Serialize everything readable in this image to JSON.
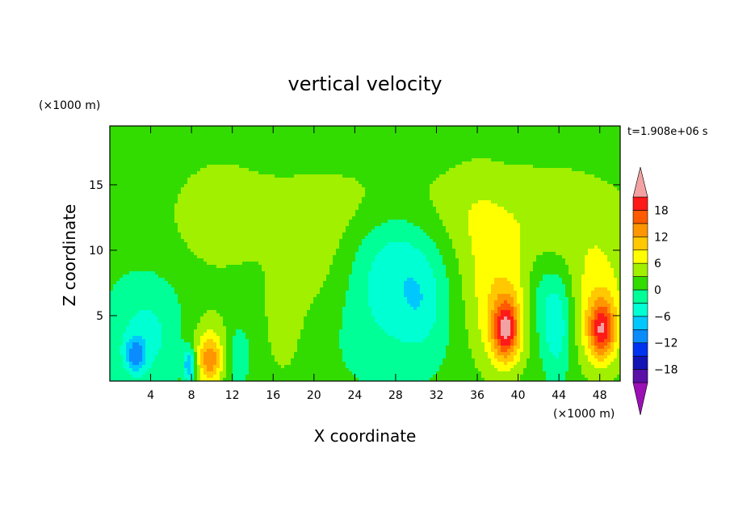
{
  "chart_data": {
    "type": "heatmap",
    "title": "vertical velocity",
    "xlabel": "X coordinate",
    "ylabel": "Z coordinate",
    "x_units": "(×1000 m)",
    "y_units": "(×1000 m)",
    "time_label": "t=1.908e+06 s",
    "xlim": [
      0,
      50
    ],
    "ylim": [
      0,
      19.5
    ],
    "x_ticks": [
      4,
      8,
      12,
      16,
      20,
      24,
      28,
      32,
      36,
      40,
      44,
      48
    ],
    "y_ticks": [
      5,
      10,
      15
    ],
    "colorbar": {
      "levels": [
        -21,
        -18,
        -15,
        -12,
        -9,
        -6,
        -3,
        0,
        3,
        6,
        9,
        12,
        15,
        18,
        21
      ],
      "tick_labels": [
        "18",
        "12",
        "6",
        "0",
        "−6",
        "−12",
        "−18"
      ],
      "tick_values": [
        18,
        12,
        6,
        0,
        -6,
        -12,
        -18
      ],
      "colors": [
        "#9b10b5",
        "#5a0fa6",
        "#1414b4",
        "#0032f0",
        "#0a8cff",
        "#00c8ff",
        "#00ffd2",
        "#00ff96",
        "#32dc00",
        "#a0f000",
        "#ffff00",
        "#ffc800",
        "#ff9600",
        "#ff5a00",
        "#ff1a1a",
        "#f2a2a2"
      ],
      "extend": "both"
    },
    "field_features": [
      {
        "x": 9.8,
        "z": 1.5,
        "amp": 10,
        "sx": 0.8,
        "sz": 1.3
      },
      {
        "x": 9.8,
        "z": 2.6,
        "amp": 4,
        "sx": 1.6,
        "sz": 2.2
      },
      {
        "x": 17.0,
        "z": 4.3,
        "amp": 3.5,
        "sx": 1.3,
        "sz": 3.0
      },
      {
        "x": 38.8,
        "z": 3.9,
        "amp": 15,
        "sx": 0.9,
        "sz": 1.6
      },
      {
        "x": 38.5,
        "z": 5.2,
        "amp": 7,
        "sx": 2.0,
        "sz": 3.4
      },
      {
        "x": 48.2,
        "z": 3.9,
        "amp": 14,
        "sx": 0.9,
        "sz": 1.5
      },
      {
        "x": 48.0,
        "z": 5.2,
        "amp": 7,
        "sx": 1.9,
        "sz": 3.4
      },
      {
        "x": 25.0,
        "z": 13.0,
        "amp": 3.5,
        "sx": 12.0,
        "sz": 2.8
      },
      {
        "x": 10.5,
        "z": 12.5,
        "amp": 2.5,
        "sx": 3.0,
        "sz": 3.5
      },
      {
        "x": 44.0,
        "z": 12.0,
        "amp": 3.2,
        "sx": 6.0,
        "sz": 3.5
      },
      {
        "x": 20.5,
        "z": 8.0,
        "amp": 3.0,
        "sx": 3.0,
        "sz": 3.0
      },
      {
        "x": 36.0,
        "z": 9.0,
        "amp": 2.5,
        "sx": 2.0,
        "sz": 5.0
      },
      {
        "x": 27.5,
        "z": 6.5,
        "amp": -5,
        "sx": 4.0,
        "sz": 4.0
      },
      {
        "x": 28.0,
        "z": 10.5,
        "amp": -3.5,
        "sx": 3.0,
        "sz": 2.5
      },
      {
        "x": 3.5,
        "z": 3.5,
        "amp": -5,
        "sx": 2.5,
        "sz": 3.0
      },
      {
        "x": 2.5,
        "z": 2.0,
        "amp": -9,
        "sx": 0.7,
        "sz": 0.9
      },
      {
        "x": 7.8,
        "z": 1.2,
        "amp": -11,
        "sx": 0.4,
        "sz": 0.9
      },
      {
        "x": 12.5,
        "z": 2.0,
        "amp": -4,
        "sx": 0.8,
        "sz": 1.6
      },
      {
        "x": 43.8,
        "z": 4.5,
        "amp": -7,
        "sx": 1.0,
        "sz": 2.8
      },
      {
        "x": 42.0,
        "z": 6.5,
        "amp": -3,
        "sx": 1.0,
        "sz": 2.5
      },
      {
        "x": 30.5,
        "z": 6.0,
        "amp": -3,
        "sx": 1.5,
        "sz": 2.5
      }
    ]
  }
}
